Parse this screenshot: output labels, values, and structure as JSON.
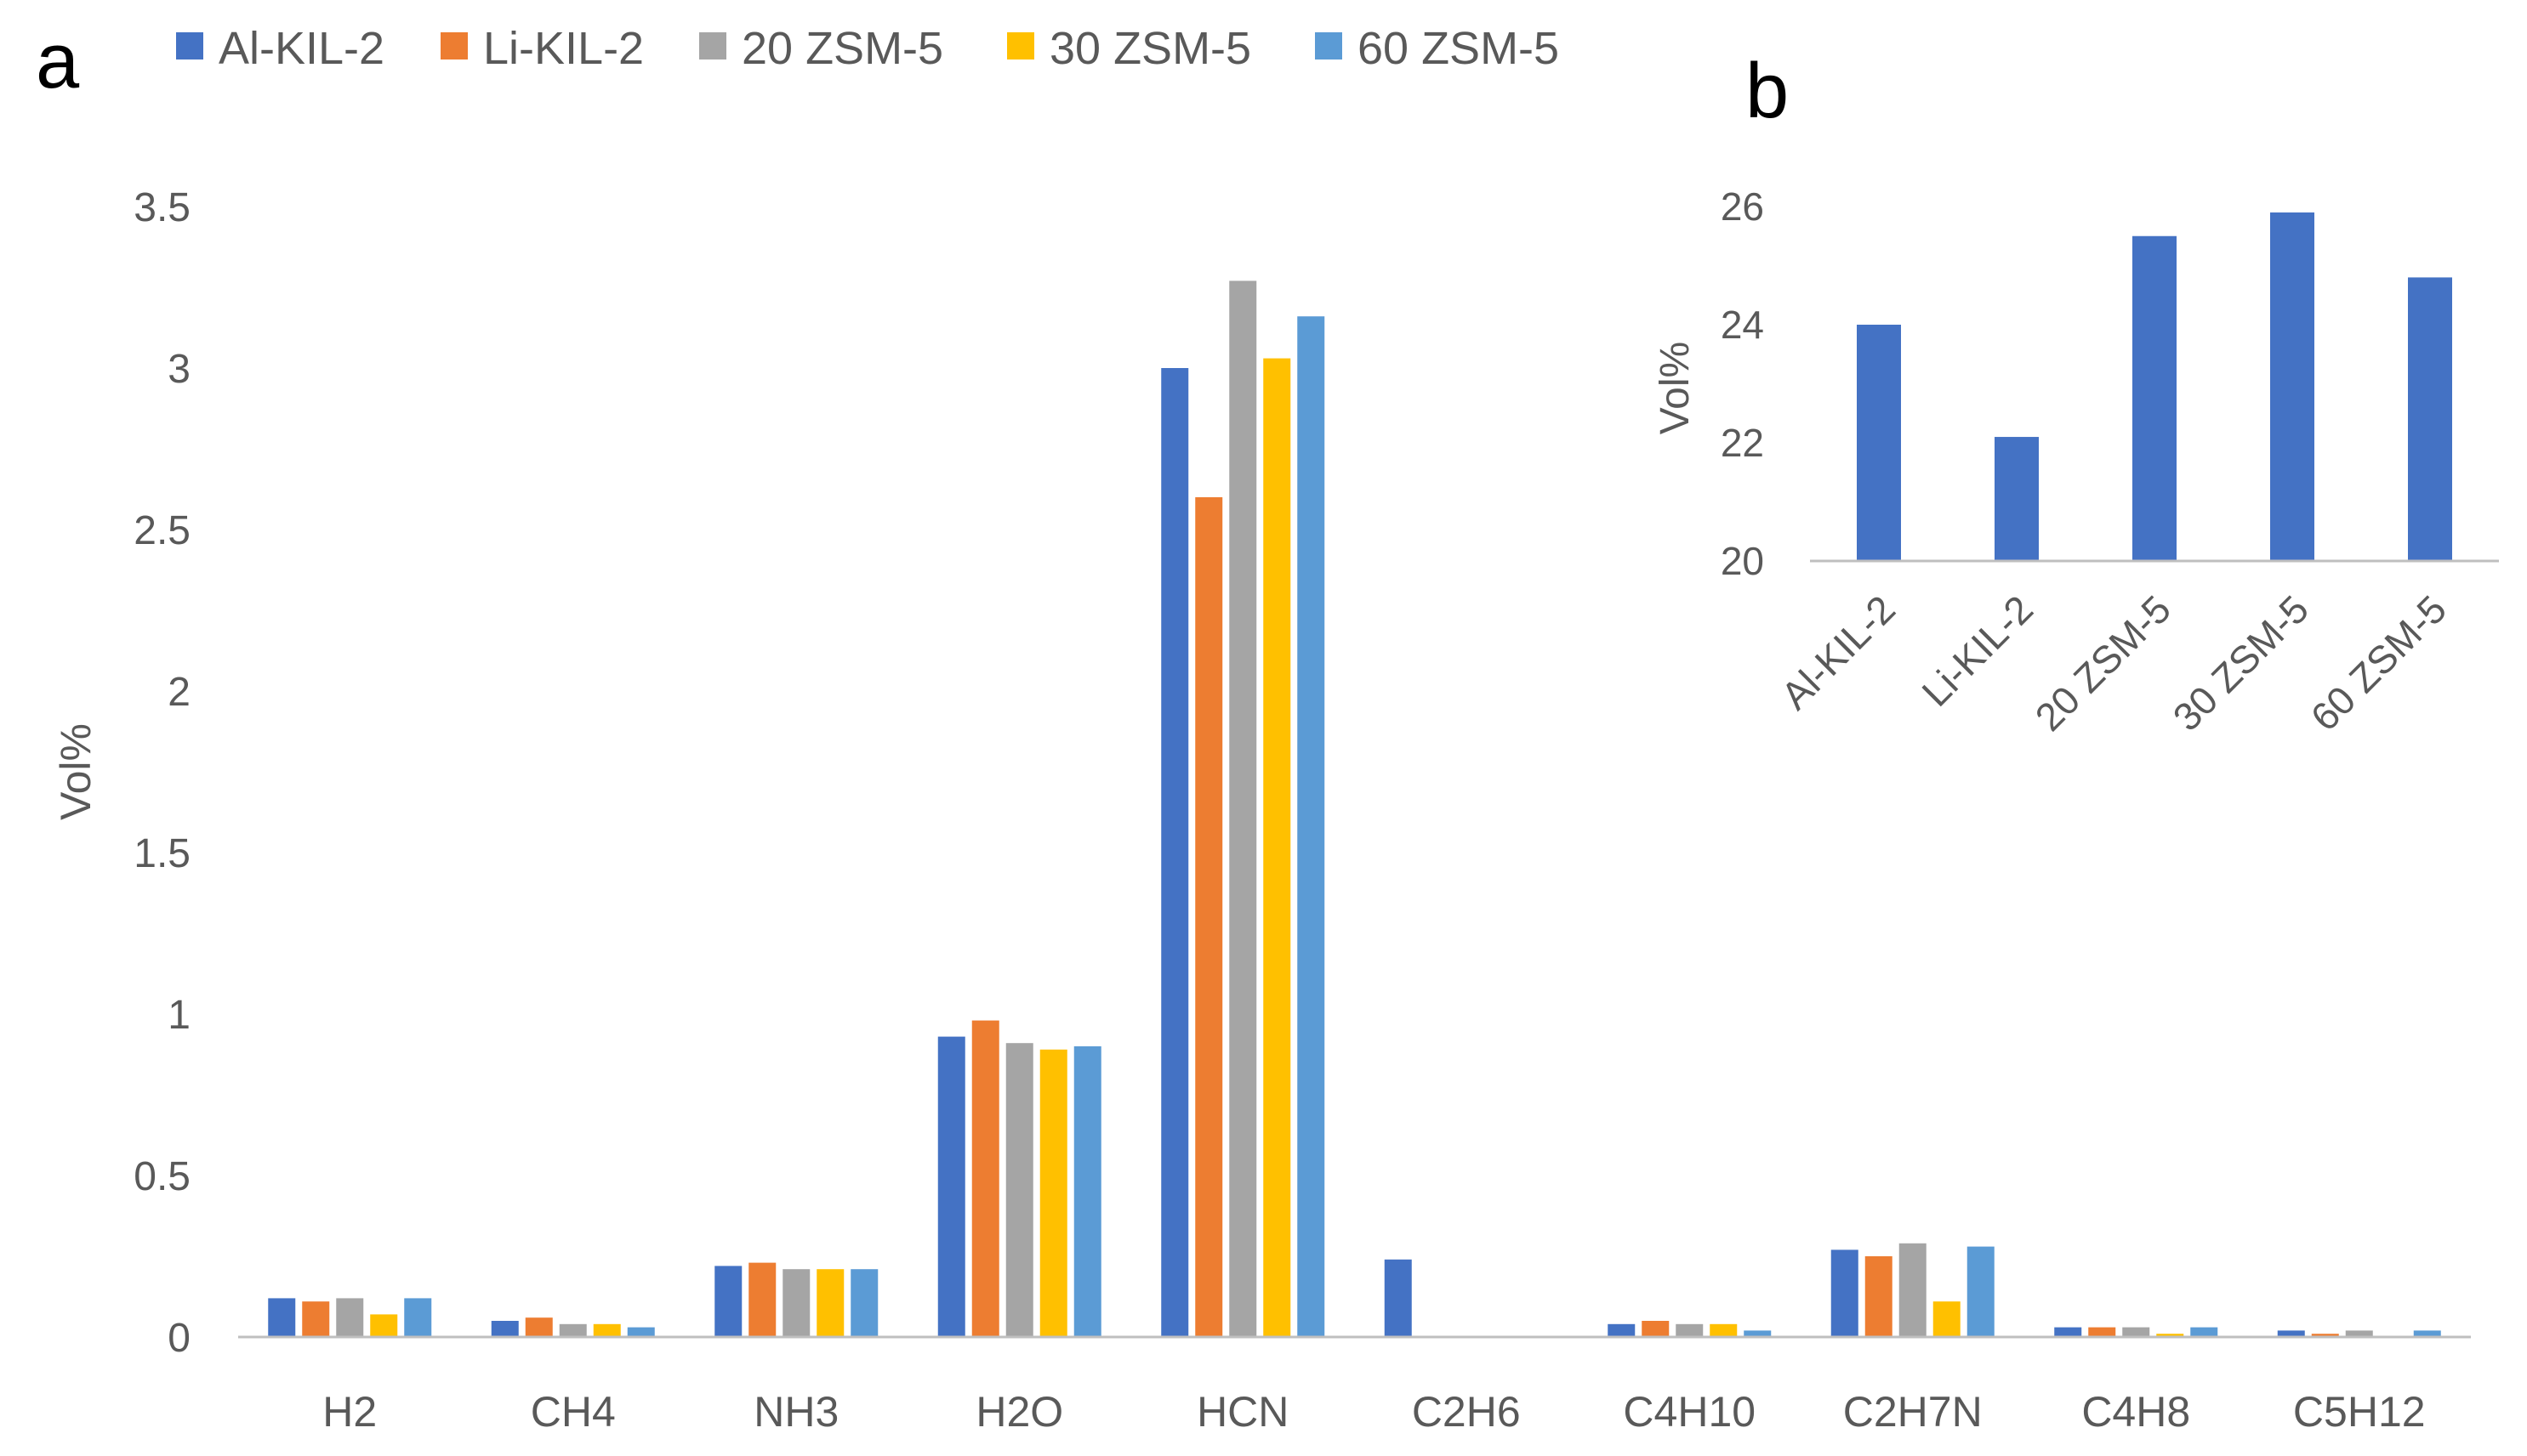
{
  "panel_labels": {
    "a": "a",
    "b": "b"
  },
  "colors": {
    "series": [
      "#4472C4",
      "#ED7D31",
      "#A5A5A5",
      "#FFC000",
      "#5B9BD5"
    ],
    "axis": "#BFBFBF",
    "text": "#595959",
    "label": "#000000"
  },
  "chart_data": [
    {
      "id": "a",
      "type": "bar",
      "title": "",
      "xlabel": "",
      "ylabel": "Vol%",
      "ylim": [
        0,
        3.5
      ],
      "yticks": [
        "0",
        "0.5",
        "1",
        "1.5",
        "2",
        "2.5",
        "3",
        "3.5"
      ],
      "ytick_values": [
        0,
        0.5,
        1,
        1.5,
        2,
        2.5,
        3,
        3.5
      ],
      "grid": false,
      "legend_position": "top",
      "categories": [
        "H2",
        "CH4",
        "NH3",
        "H2O",
        "HCN",
        "C2H6",
        "C4H10",
        "C2H7N",
        "C4H8",
        "C5H12"
      ],
      "series": [
        {
          "name": "Al-KIL-2",
          "values": [
            0.12,
            0.05,
            0.22,
            0.93,
            3.0,
            0.24,
            0.04,
            0.27,
            0.03,
            0.02
          ]
        },
        {
          "name": "Li-KIL-2",
          "values": [
            0.11,
            0.06,
            0.23,
            0.98,
            2.6,
            0.0,
            0.05,
            0.25,
            0.03,
            0.01
          ]
        },
        {
          "name": "20 ZSM-5",
          "values": [
            0.12,
            0.04,
            0.21,
            0.91,
            3.27,
            0.0,
            0.04,
            0.29,
            0.03,
            0.02
          ]
        },
        {
          "name": "30 ZSM-5",
          "values": [
            0.07,
            0.04,
            0.21,
            0.89,
            3.03,
            0.0,
            0.04,
            0.11,
            0.01,
            0.0
          ]
        },
        {
          "name": "60 ZSM-5",
          "values": [
            0.12,
            0.03,
            0.21,
            0.9,
            3.16,
            0.0,
            0.02,
            0.28,
            0.03,
            0.02
          ]
        }
      ]
    },
    {
      "id": "b",
      "type": "bar",
      "title": "",
      "xlabel": "",
      "ylabel": "Vol%",
      "ylim": [
        20,
        26
      ],
      "yticks": [
        "20",
        "22",
        "24",
        "26"
      ],
      "ytick_values": [
        20,
        22,
        24,
        26
      ],
      "grid": false,
      "categories": [
        "Al-KIL-2",
        "Li-KIL-2",
        "20 ZSM-5",
        "30 ZSM-5",
        "60 ZSM-5"
      ],
      "values": [
        24.0,
        22.1,
        25.5,
        25.9,
        24.8
      ]
    }
  ]
}
